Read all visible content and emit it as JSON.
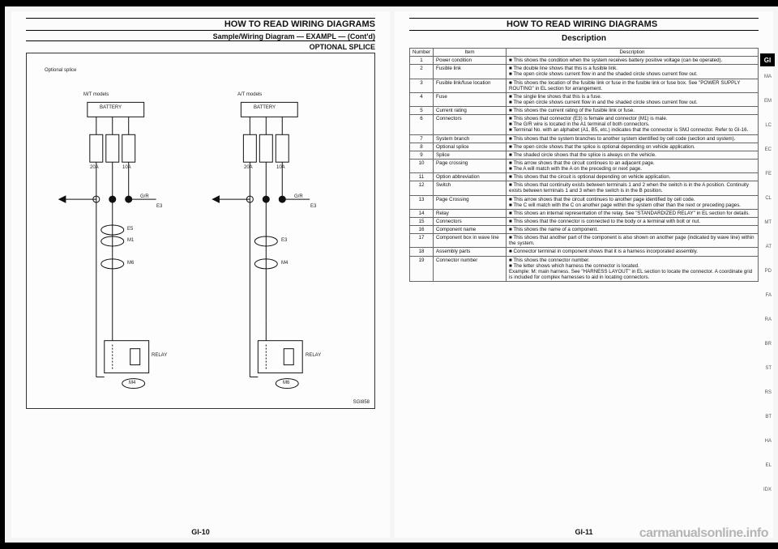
{
  "left": {
    "header": "HOW TO READ WIRING DIAGRAMS",
    "sub": "Sample/Wiring Diagram — EXAMPL — (Cont'd)",
    "section": "OPTIONAL SPLICE",
    "labels": {
      "optsplice": "Optional splice",
      "mt": "M/T models",
      "at": "A/T models",
      "battery": "BATTERY",
      "relay": "RELAY",
      "sgcode": "SGI858",
      "c20a": "20A",
      "c10a": "10A",
      "cgr": "G/R",
      "e3": "E3",
      "e5": "E5",
      "m1": "M1",
      "m4": "M4",
      "m6": "M6",
      "arrow": "◄"
    },
    "footer": "GI-10"
  },
  "right": {
    "header": "HOW TO READ WIRING DIAGRAMS",
    "section": "Description",
    "gi": "GI",
    "cols": {
      "num": "Number",
      "item": "Item",
      "desc": "Description"
    },
    "rows": [
      {
        "n": "1",
        "item": "Power condition",
        "desc": "■ This shows the condition when the system receives battery positive voltage (can be operated)."
      },
      {
        "n": "2",
        "item": "Fusible link",
        "desc": "■ The double line shows that this is a fusible link.\n■ The open circle shows current flow in and the shaded circle shows current flow out."
      },
      {
        "n": "3",
        "item": "Fusible link/fuse location",
        "desc": "■ This shows the location of the fusible link or fuse in the fusible link or fuse box. See \"POWER SUPPLY ROUTING\" in EL section for arrangement."
      },
      {
        "n": "4",
        "item": "Fuse",
        "desc": "■ The single line shows that this is a fuse.\n■ The open circle shows current flow in and the shaded circle shows current flow out."
      },
      {
        "n": "5",
        "item": "Current rating",
        "desc": "■ This shows the current rating of the fusible link or fuse."
      },
      {
        "n": "6",
        "item": "Connectors",
        "desc": "■ This shows that connector (E3) is female and connector (M1) is male.\n■ The G/R wire is located in the A1 terminal of both connectors.\n■ Terminal No. with an alphabet (A1, B5, etc.) indicates that the connector is SMJ connector. Refer to GI-16."
      },
      {
        "n": "7",
        "item": "System branch",
        "desc": "■ This shows that the system branches to another system identified by cell code (section and system)."
      },
      {
        "n": "8",
        "item": "Optional splice",
        "desc": "■ The open circle shows that the splice is optional depending on vehicle application."
      },
      {
        "n": "9",
        "item": "Splice",
        "desc": "■ The shaded circle shows that the splice is always on the vehicle."
      },
      {
        "n": "10",
        "item": "Page crossing",
        "desc": "■ This arrow shows that the circuit continues to an adjacent page.\n■ The A will match with the A on the preceding or next page."
      },
      {
        "n": "11",
        "item": "Option abbreviation",
        "desc": "■ This shows that the circuit is optional depending on vehicle application."
      },
      {
        "n": "12",
        "item": "Switch",
        "desc": "■ This shows that continuity exists between terminals 1 and 2 when the switch is in the A position. Continuity exists between terminals 1 and 3 when the switch is in the B position."
      },
      {
        "n": "13",
        "item": "Page Crossing",
        "desc": "■ This arrow shows that the circuit continues to another page identified by cell code.\n■ The C will match with the C on another page within the system other than the next or preceding pages."
      },
      {
        "n": "14",
        "item": "Relay",
        "desc": "■ This shows an internal representation of the relay. See \"STANDARDIZED RELAY\" in EL section for details."
      },
      {
        "n": "15",
        "item": "Connectors",
        "desc": "■ This shows that the connector is connected to the body or a terminal with bolt or nut."
      },
      {
        "n": "16",
        "item": "Component name",
        "desc": "■ This shows the name of a component."
      },
      {
        "n": "17",
        "item": "Component box in wave line",
        "desc": "■ This shows that another part of the component is also shown on another page (indicated by wave line) within the system."
      },
      {
        "n": "18",
        "item": "Assembly parts",
        "desc": "■ Connector terminal in component shows that it is a harness incorporated assembly."
      },
      {
        "n": "19",
        "item": "Connector number",
        "desc": "■ This shows the connector number.\n■ The letter shows which harness the connector is located.\nExample: M: main harness. See \"HARNESS LAYOUT\" in EL section to locate the connector. A coordinate grid is included for complex harnesses to aid in locating connectors."
      }
    ],
    "sidenums": [
      "MA",
      "EM",
      "LC",
      "EC",
      "FE",
      "CL",
      "MT",
      "AT",
      "PD",
      "FA",
      "RA",
      "BR",
      "ST",
      "RS",
      "BT",
      "HA",
      "EL",
      "IDX"
    ],
    "footer": "GI-11"
  },
  "watermark": "carmanualsonline.info"
}
